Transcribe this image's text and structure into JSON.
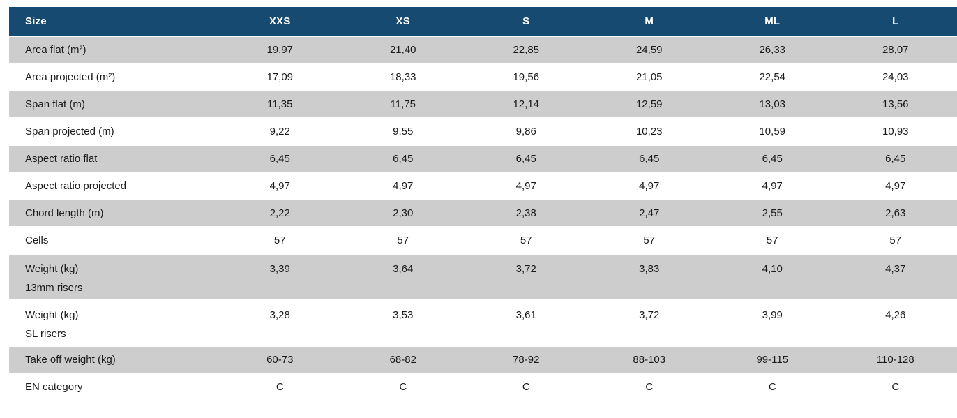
{
  "chart_data": {
    "type": "table",
    "header": {
      "label_column": "Size",
      "size_columns": [
        "XXS",
        "XS",
        "S",
        "M",
        "ML",
        "L"
      ]
    },
    "rows": [
      {
        "label": "Area flat (m²)",
        "values": [
          "19,97",
          "21,40",
          "22,85",
          "24,59",
          "26,33",
          "28,07"
        ]
      },
      {
        "label": "Area projected (m²)",
        "values": [
          "17,09",
          "18,33",
          "19,56",
          "21,05",
          "22,54",
          "24,03"
        ]
      },
      {
        "label": "Span flat (m)",
        "values": [
          "11,35",
          "11,75",
          "12,14",
          "12,59",
          "13,03",
          "13,56"
        ]
      },
      {
        "label": "Span projected (m)",
        "values": [
          "9,22",
          "9,55",
          "9,86",
          "10,23",
          "10,59",
          "10,93"
        ]
      },
      {
        "label": "Aspect ratio flat",
        "values": [
          "6,45",
          "6,45",
          "6,45",
          "6,45",
          "6,45",
          "6,45"
        ]
      },
      {
        "label": "Aspect ratio projected",
        "values": [
          "4,97",
          "4,97",
          "4,97",
          "4,97",
          "4,97",
          "4,97"
        ]
      },
      {
        "label": "Chord length (m)",
        "values": [
          "2,22",
          "2,30",
          "2,38",
          "2,47",
          "2,55",
          "2,63"
        ]
      },
      {
        "label": "Cells",
        "values": [
          "57",
          "57",
          "57",
          "57",
          "57",
          "57"
        ]
      },
      {
        "label": "Weight (kg)",
        "label_line2": "13mm risers",
        "values": [
          "3,39",
          "3,64",
          "3,72",
          "3,83",
          "4,10",
          "4,37"
        ]
      },
      {
        "label": "Weight (kg)",
        "label_line2": "SL risers",
        "values": [
          "3,28",
          "3,53",
          "3,61",
          "3,72",
          "3,99",
          "4,26"
        ]
      },
      {
        "label": "Take off weight (kg)",
        "values": [
          "60-73",
          "68-82",
          "78-92",
          "88-103",
          "99-115",
          "110-128"
        ]
      },
      {
        "label": "EN category",
        "values": [
          "C",
          "C",
          "C",
          "C",
          "C",
          "C"
        ]
      }
    ],
    "layout_hints": {
      "shaded_row_indexes": [
        0,
        2,
        4,
        6,
        8,
        10
      ],
      "two_line_row_indexes": [
        8,
        9
      ]
    }
  },
  "colors": {
    "header_bg": "#164a70",
    "header_text": "#ffffff",
    "row_shaded_bg": "#cdcdcd",
    "row_plain_bg": "#ffffff",
    "body_text": "#1a1a1a"
  }
}
